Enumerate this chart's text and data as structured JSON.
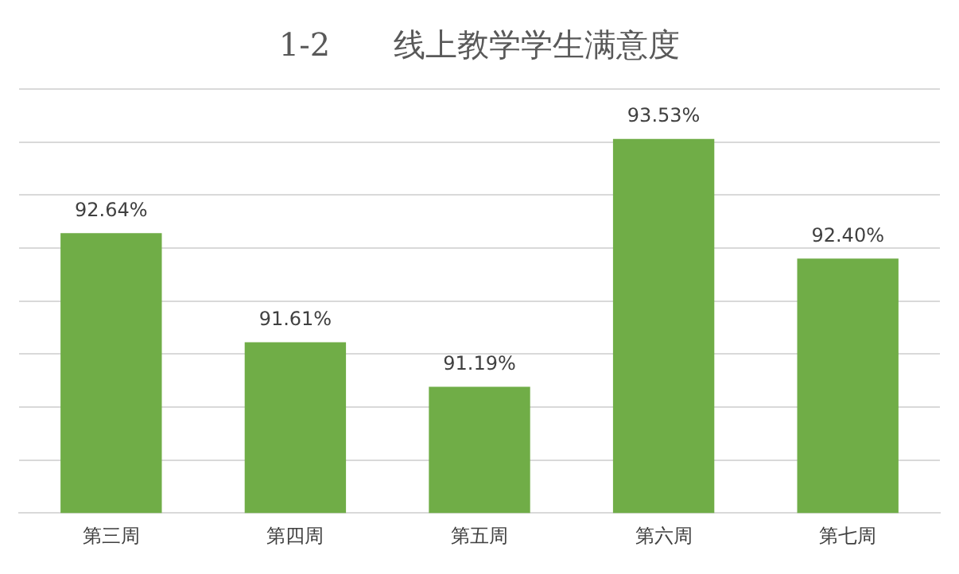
{
  "chart_data": {
    "type": "bar",
    "title": "1-2　　线上教学学生满意度",
    "categories": [
      "第三周",
      "第四周",
      "第五周",
      "第六周",
      "第七周"
    ],
    "values": [
      92.64,
      91.61,
      91.19,
      93.53,
      92.4
    ],
    "value_labels": [
      "92.64%",
      "91.61%",
      "91.19%",
      "93.53%",
      "92.40%"
    ],
    "color": "#70ad47",
    "ylim": [
      90,
      94
    ],
    "yticks": [
      {
        "value": 90,
        "label": null
      },
      {
        "value": 90.5,
        "label": null
      },
      {
        "value": 91,
        "label": null
      },
      {
        "value": 91.5,
        "label": null
      },
      {
        "value": 92,
        "label": null
      },
      {
        "value": 92.5,
        "label": null
      },
      {
        "value": 93,
        "label": null
      },
      {
        "value": 93.5,
        "label": null
      },
      {
        "value": 94,
        "label": null
      }
    ],
    "grid": "y",
    "tick_labels": "x",
    "legend": false
  }
}
